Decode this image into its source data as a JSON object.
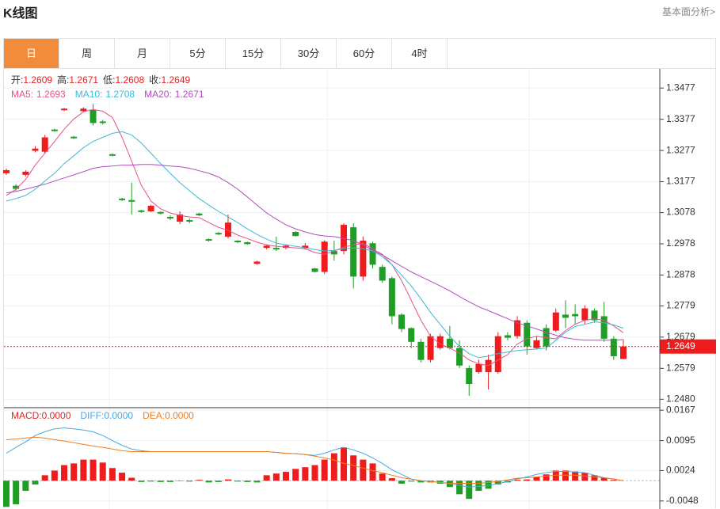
{
  "header": {
    "title": "K线图",
    "link": "基本面分析>"
  },
  "tabs": [
    "日",
    "周",
    "月",
    "5分",
    "15分",
    "30分",
    "60分",
    "4时"
  ],
  "active_tab": 0,
  "chart_data": [
    {
      "type": "candlestick",
      "labels": [
        "开:",
        "高:",
        "低:",
        "收:"
      ],
      "up_color": "#ee1c1c",
      "down_color": "#1e9e24",
      "grid": true,
      "ylim": [
        1.2453,
        1.3541
      ],
      "yticks": [
        1.3477,
        1.3377,
        1.3277,
        1.3177,
        1.3078,
        1.2978,
        1.2878,
        1.2779,
        1.2679,
        1.2579,
        {
          "value": 1.248,
          "label": "1.2480"
        }
      ],
      "open": [
        1.3204,
        1.3164,
        1.3199,
        1.3276,
        1.3273,
        1.3344,
        1.3406,
        1.3321,
        1.3403,
        1.3408,
        1.337,
        1.3265,
        1.3123,
        1.3118,
        1.3085,
        1.3082,
        1.308,
        1.3064,
        1.3049,
        1.3054,
        1.3075,
        1.2993,
        1.3013,
        1.3001,
        1.2988,
        1.2983,
        1.2914,
        1.2965,
        1.2965,
        1.2965,
        1.3016,
        1.2965,
        1.2899,
        1.2888,
        1.2955,
        1.2955,
        1.3031,
        1.2873,
        1.298,
        1.2904,
        1.2868,
        1.2751,
        1.2708,
        1.2664,
        1.2606,
        1.2644,
        1.2674,
        1.2644,
        1.258,
        1.2567,
        1.2567,
        1.2567,
        1.2685,
        1.2682,
        1.2725,
        1.2644,
        1.2708,
        1.27,
        1.2751,
        1.2753,
        1.2733,
        1.2764,
        1.2746,
        1.2674,
        1.2609
      ],
      "close": [
        1.3214,
        1.3154,
        1.3209,
        1.3283,
        1.3319,
        1.3339,
        1.3411,
        1.3316,
        1.3411,
        1.3365,
        1.3365,
        1.326,
        1.3118,
        1.3113,
        1.308,
        1.31,
        1.3075,
        1.3059,
        1.3072,
        1.3049,
        1.3069,
        1.2988,
        1.3008,
        1.3046,
        1.2983,
        1.2977,
        1.2921,
        1.2972,
        1.296,
        1.2972,
        1.3003,
        1.2972,
        1.2888,
        1.2985,
        1.2944,
        1.3039,
        1.2873,
        1.2988,
        1.2911,
        1.286,
        1.2746,
        1.2705,
        1.2664,
        1.2606,
        1.2682,
        1.2682,
        1.2644,
        1.2588,
        1.2529,
        1.2593,
        1.2606,
        1.2682,
        1.2677,
        1.2733,
        1.2649,
        1.2669,
        1.2649,
        1.2758,
        1.2741,
        1.2746,
        1.2771,
        1.2733,
        1.2674,
        1.2618,
        1.2649
      ],
      "high": [
        1.3219,
        1.3169,
        1.3214,
        1.3291,
        1.3327,
        1.3347,
        1.3413,
        1.3324,
        1.3416,
        1.3426,
        1.3375,
        1.3268,
        1.3126,
        1.3174,
        1.3087,
        1.3103,
        1.3082,
        1.3069,
        1.3082,
        1.3059,
        1.3077,
        1.2995,
        1.3016,
        1.3072,
        1.299,
        1.2985,
        1.2924,
        1.2975,
        1.3001,
        1.2975,
        1.3019,
        1.298,
        1.2901,
        1.299,
        1.2988,
        1.3044,
        1.3044,
        1.3001,
        1.2985,
        1.2911,
        1.2873,
        1.2756,
        1.271,
        1.2674,
        1.269,
        1.269,
        1.2715,
        1.2669,
        1.2588,
        1.2606,
        1.2623,
        1.2695,
        1.2695,
        1.2746,
        1.2733,
        1.2682,
        1.272,
        1.2771,
        1.2797,
        1.2784,
        1.2781,
        1.2771,
        1.2792,
        1.2682,
        1.2671
      ],
      "low": [
        1.3199,
        1.3148,
        1.3194,
        1.3271,
        1.3268,
        1.3337,
        1.3403,
        1.3314,
        1.3401,
        1.3357,
        1.336,
        1.3258,
        1.3115,
        1.3072,
        1.3077,
        1.308,
        1.3072,
        1.3054,
        1.3041,
        1.3044,
        1.3067,
        1.2985,
        1.3006,
        1.2995,
        1.298,
        1.2975,
        1.2911,
        1.296,
        1.2955,
        1.296,
        1.3001,
        1.296,
        1.2886,
        1.2881,
        1.2924,
        1.2944,
        1.2835,
        1.286,
        1.2899,
        1.2853,
        1.272,
        1.2695,
        1.2644,
        1.2598,
        1.2598,
        1.2639,
        1.2639,
        1.258,
        1.2491,
        1.2562,
        1.2511,
        1.2562,
        1.2669,
        1.2674,
        1.2623,
        1.2639,
        1.2636,
        1.2695,
        1.2708,
        1.272,
        1.272,
        1.2725,
        1.2664,
        1.2606,
        1.2608
      ],
      "lines": [
        {
          "name": "MA5:",
          "color": "#e8508a",
          "values": [
            1.3133,
            1.3153,
            1.3184,
            1.323,
            1.3268,
            1.3306,
            1.3345,
            1.3378,
            1.3401,
            1.3408,
            1.3403,
            1.3383,
            1.3319,
            1.3243,
            1.3166,
            1.3115,
            1.309,
            1.3077,
            1.3069,
            1.3064,
            1.3062,
            1.3046,
            1.3031,
            1.3021,
            1.3006,
            1.2995,
            1.2983,
            1.2975,
            1.297,
            1.2967,
            1.2965,
            1.2962,
            1.295,
            1.2944,
            1.2955,
            1.2967,
            1.2975,
            1.298,
            1.2962,
            1.2944,
            1.2911,
            1.286,
            1.2797,
            1.2733,
            1.2682,
            1.2657,
            1.2644,
            1.2628,
            1.2606,
            1.2593,
            1.2588,
            1.2606,
            1.2623,
            1.2657,
            1.2674,
            1.2682,
            1.2677,
            1.2674,
            1.27,
            1.272,
            1.2733,
            1.2738,
            1.2733,
            1.2715,
            1.2693
          ]
        },
        {
          "name": "MA10:",
          "color": "#3db8d8",
          "values": [
            1.3115,
            1.3123,
            1.3133,
            1.3153,
            1.3179,
            1.3204,
            1.3235,
            1.326,
            1.3286,
            1.3306,
            1.3319,
            1.3332,
            1.3337,
            1.3327,
            1.3301,
            1.3268,
            1.3235,
            1.3204,
            1.3174,
            1.3148,
            1.3123,
            1.3102,
            1.3082,
            1.3064,
            1.3046,
            1.3026,
            1.3008,
            1.2993,
            1.298,
            1.2975,
            1.297,
            1.2965,
            1.296,
            1.2955,
            1.2957,
            1.2962,
            1.2965,
            1.2962,
            1.2955,
            1.2937,
            1.2911,
            1.2878,
            1.2843,
            1.2802,
            1.2758,
            1.272,
            1.2682,
            1.2649,
            1.2626,
            1.2613,
            1.2618,
            1.2626,
            1.2631,
            1.2636,
            1.2639,
            1.2641,
            1.2644,
            1.2669,
            1.2695,
            1.2713,
            1.272,
            1.2728,
            1.2725,
            1.2718,
            1.2708
          ]
        },
        {
          "name": "MA20:",
          "color": "#b34cc0",
          "values": [
            1.3141,
            1.3146,
            1.3153,
            1.3161,
            1.3169,
            1.3179,
            1.3189,
            1.3199,
            1.3209,
            1.322,
            1.3225,
            1.3227,
            1.323,
            1.323,
            1.3232,
            1.3232,
            1.323,
            1.3227,
            1.3225,
            1.322,
            1.3212,
            1.3204,
            1.3192,
            1.3174,
            1.3153,
            1.3128,
            1.3102,
            1.3077,
            1.3057,
            1.3039,
            1.3026,
            1.3016,
            1.3008,
            1.3003,
            1.3001,
            1.2995,
            1.2988,
            1.2975,
            1.2957,
            1.2942,
            1.2924,
            1.2906,
            1.2888,
            1.2873,
            1.2858,
            1.2843,
            1.2827,
            1.2809,
            1.2792,
            1.2776,
            1.2764,
            1.2751,
            1.2738,
            1.2725,
            1.2715,
            1.2705,
            1.2695,
            1.2685,
            1.2677,
            1.2672,
            1.2669,
            1.2669,
            1.2669,
            1.2669,
            1.2671
          ]
        }
      ]
    },
    {
      "type": "macd",
      "up_color": "#ee1c1c",
      "down_color": "#1e9e24",
      "grid": true,
      "ylim": [
        -0.0067,
        0.0173
      ],
      "yticks": [
        0.0167,
        0.0095,
        0.0024,
        -0.0048
      ],
      "series": [
        {
          "name": "MACD:",
          "kind": "bar",
          "color": "#e02828",
          "last_label": "0.0000",
          "values": [
            -0.0062,
            -0.0056,
            -0.0024,
            -0.0009,
            0.0013,
            0.0024,
            0.0037,
            0.0041,
            0.005,
            0.005,
            0.0043,
            0.003,
            0.0019,
            0.0007,
            -0.0003,
            -0.0002,
            -0.0003,
            -0.0003,
            -0.0001,
            -0.0002,
            0.0002,
            -0.0004,
            -0.0003,
            0.0003,
            -0.0002,
            -0.0003,
            -0.0004,
            0.0013,
            0.0017,
            0.0021,
            0.0028,
            0.0032,
            0.0037,
            0.005,
            0.0065,
            0.0079,
            0.006,
            0.005,
            0.0041,
            0.0017,
            0.0006,
            -0.0007,
            -0.0002,
            -0.0004,
            -0.0004,
            -0.0007,
            -0.0015,
            -0.0032,
            -0.0043,
            -0.0024,
            -0.0019,
            -0.0009,
            -0.0004,
            0.0002,
            0.0003,
            0.0009,
            0.0015,
            0.0024,
            0.0024,
            0.0022,
            0.0019,
            0.0013,
            0.0007,
            0.0002,
            0
          ]
        },
        {
          "name": "DIFF:",
          "kind": "line",
          "color": "#4aa8e0",
          "last_label": "0.0000",
          "values": [
            0.0065,
            0.0079,
            0.0092,
            0.0107,
            0.0116,
            0.0123,
            0.0125,
            0.0123,
            0.012,
            0.0116,
            0.0107,
            0.0095,
            0.0084,
            0.0075,
            0.0071,
            0.0069,
            0.0069,
            0.0069,
            0.0069,
            0.0069,
            0.0069,
            0.0069,
            0.0069,
            0.0069,
            0.0069,
            0.0069,
            0.0069,
            0.0069,
            0.0067,
            0.0065,
            0.0064,
            0.0062,
            0.006,
            0.0065,
            0.0073,
            0.0079,
            0.0073,
            0.0065,
            0.0054,
            0.0041,
            0.0026,
            0.0015,
            0.0004,
            0,
            -0.0002,
            -0.0004,
            -0.0007,
            -0.0011,
            -0.0015,
            -0.0013,
            -0.0011,
            -0.0007,
            -0.0002,
            0.0004,
            0.0009,
            0.0015,
            0.0019,
            0.0022,
            0.0022,
            0.0021,
            0.0019,
            0.0013,
            0.0007,
            0.0004,
            0
          ]
        },
        {
          "name": "DEA:",
          "kind": "line",
          "color": "#f07d1a",
          "last_label": "0.0000",
          "values": [
            0.0097,
            0.0099,
            0.0101,
            0.0103,
            0.0101,
            0.0097,
            0.0094,
            0.009,
            0.0086,
            0.0082,
            0.0079,
            0.0075,
            0.0071,
            0.0069,
            0.0069,
            0.0069,
            0.0069,
            0.0069,
            0.0069,
            0.0069,
            0.0069,
            0.0069,
            0.0069,
            0.0069,
            0.0069,
            0.0069,
            0.0069,
            0.0069,
            0.0067,
            0.0065,
            0.0064,
            0.0062,
            0.0058,
            0.0054,
            0.0049,
            0.0041,
            0.0036,
            0.003,
            0.0024,
            0.0019,
            0.0013,
            0.0007,
            0.0004,
            0,
            -0.0002,
            -0.0004,
            -0.0006,
            -0.0006,
            -0.0006,
            -0.0006,
            -0.0004,
            -0.0002,
            0.0002,
            0.0006,
            0.0007,
            0.0009,
            0.0011,
            0.0013,
            0.0013,
            0.0013,
            0.0011,
            0.0009,
            0.0007,
            0.0004,
            0
          ]
        }
      ]
    }
  ]
}
